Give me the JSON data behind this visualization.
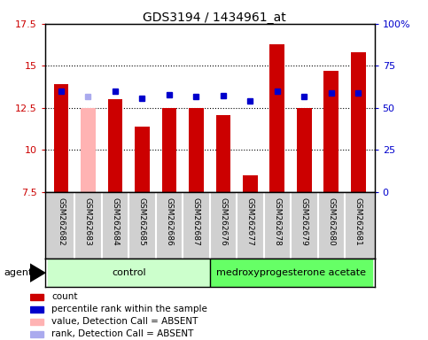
{
  "title": "GDS3194 / 1434961_at",
  "samples": [
    "GSM262682",
    "GSM262683",
    "GSM262684",
    "GSM262685",
    "GSM262686",
    "GSM262687",
    "GSM262676",
    "GSM262677",
    "GSM262678",
    "GSM262679",
    "GSM262680",
    "GSM262681"
  ],
  "bar_values": [
    13.9,
    12.5,
    13.0,
    11.4,
    12.5,
    12.5,
    12.1,
    8.5,
    16.3,
    12.5,
    14.7,
    15.8
  ],
  "bar_absent": [
    false,
    true,
    false,
    false,
    false,
    false,
    false,
    false,
    false,
    false,
    false,
    false
  ],
  "rank_values": [
    13.5,
    13.2,
    13.5,
    13.1,
    13.3,
    13.2,
    13.25,
    12.9,
    13.5,
    13.2,
    13.4,
    13.4
  ],
  "rank_absent": [
    false,
    true,
    false,
    false,
    false,
    false,
    false,
    false,
    false,
    false,
    false,
    false
  ],
  "ylim_left": [
    7.5,
    17.5
  ],
  "ylim_right": [
    0,
    100
  ],
  "yticks_left": [
    7.5,
    10.0,
    12.5,
    15.0,
    17.5
  ],
  "yticks_right": [
    0,
    25,
    50,
    75,
    100
  ],
  "ytick_labels_left": [
    "7.5",
    "10",
    "12.5",
    "15",
    "17.5"
  ],
  "ytick_labels_right": [
    "0",
    "25",
    "50",
    "75",
    "100%"
  ],
  "group1_label": "control",
  "group2_label": "medroxyprogesterone acetate",
  "group1_indices": [
    0,
    1,
    2,
    3,
    4,
    5
  ],
  "group2_indices": [
    6,
    7,
    8,
    9,
    10,
    11
  ],
  "agent_label": "agent",
  "bar_color_normal": "#cc0000",
  "bar_color_absent": "#ffb3b3",
  "rank_color_normal": "#0000cc",
  "rank_color_absent": "#aaaaee",
  "group1_color": "#ccffcc",
  "group2_color": "#66ff66",
  "bg_color": "#d0d0d0",
  "legend_items": [
    {
      "color": "#cc0000",
      "label": "count"
    },
    {
      "color": "#0000cc",
      "label": "percentile rank within the sample"
    },
    {
      "color": "#ffb3b3",
      "label": "value, Detection Call = ABSENT"
    },
    {
      "color": "#aaaaee",
      "label": "rank, Detection Call = ABSENT"
    }
  ]
}
